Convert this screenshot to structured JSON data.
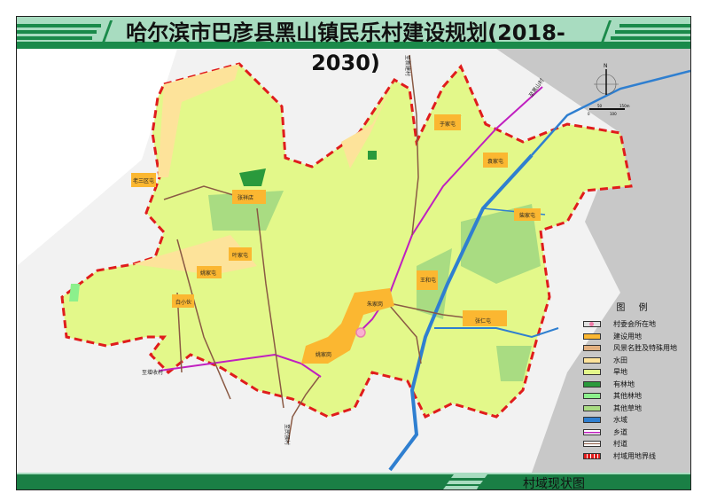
{
  "title": "哈尔滨市巴彦县黑山镇民乐村建设规划(2018-2030)",
  "footer": "村域现状图",
  "villages": [
    {
      "name": "老三区屯"
    },
    {
      "name": "张祥店"
    },
    {
      "name": "叶家屯"
    },
    {
      "name": "姚家屯"
    },
    {
      "name": "白小伙"
    },
    {
      "name": "于家屯"
    },
    {
      "name": "袁家屯"
    },
    {
      "name": "柴家屯"
    },
    {
      "name": "王和屯"
    },
    {
      "name": "朱家岗"
    },
    {
      "name": "张仁屯"
    },
    {
      "name": "姚家岗"
    }
  ],
  "road_labels": {
    "north": "至新建村",
    "northeast": "至黑山村",
    "west": "至增收村",
    "south": "至民强村"
  },
  "compass": {
    "north": "N"
  },
  "scale": {
    "labels": [
      "0",
      "50",
      "100",
      "150m"
    ]
  },
  "legend": {
    "title": "图  例",
    "items": [
      {
        "label": "村委会所在地",
        "color": "#e0e0e0"
      },
      {
        "label": "建设用地",
        "color": "#fbb731"
      },
      {
        "label": "风景名胜及特殊用地",
        "color": "#e2b07f"
      },
      {
        "label": "水田",
        "color": "#fde39a"
      },
      {
        "label": "旱地",
        "color": "#e3f88a"
      },
      {
        "label": "有林地",
        "color": "#2a9a3c"
      },
      {
        "label": "其他林地",
        "color": "#8cf08c"
      },
      {
        "label": "其他草地",
        "color": "#a9dc82"
      },
      {
        "label": "水域",
        "color": "#2f7fd0"
      },
      {
        "label": "乡道",
        "color": "#c020c0"
      },
      {
        "label": "村道",
        "color": "#8a5a44"
      },
      {
        "label": "村域用地界线",
        "color": "#e01c1c"
      }
    ]
  },
  "colors": {
    "frame_green": "#1a8a4a",
    "light_green": "#a8dcc0",
    "boundary": "#e01c1c"
  }
}
